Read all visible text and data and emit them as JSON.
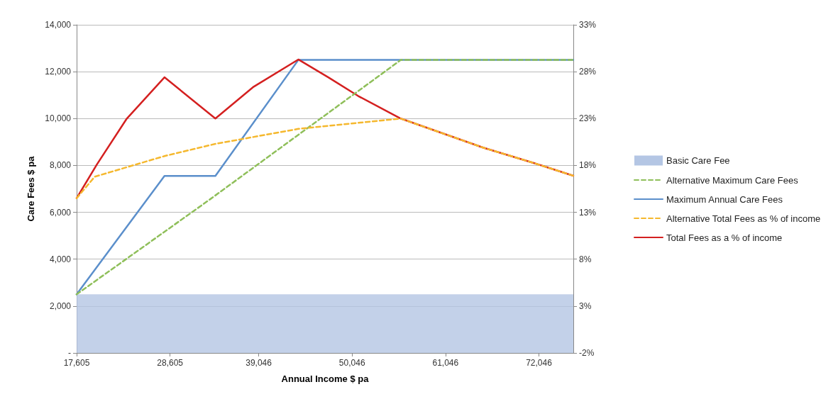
{
  "chart_data": {
    "type": "line",
    "xlabel": "Annual Income $ pa",
    "ylabel": "Care Fees $ pa",
    "xlim": [
      17605,
      76100
    ],
    "xticks": [
      {
        "value": 17605,
        "label": "17,605"
      },
      {
        "value": 28605,
        "label": "28,605"
      },
      {
        "value": 39046,
        "label": "39,046"
      },
      {
        "value": 50046,
        "label": "50,046"
      },
      {
        "value": 61046,
        "label": "61,046"
      },
      {
        "value": 72046,
        "label": "72,046"
      }
    ],
    "ylim": [
      0,
      14000
    ],
    "yticks": [
      {
        "value": 0,
        "label": "-"
      },
      {
        "value": 2000,
        "label": "2,000"
      },
      {
        "value": 4000,
        "label": "4,000"
      },
      {
        "value": 6000,
        "label": "6,000"
      },
      {
        "value": 8000,
        "label": "8,000"
      },
      {
        "value": 10000,
        "label": "10,000"
      },
      {
        "value": 12000,
        "label": "12,000"
      },
      {
        "value": 14000,
        "label": "14,000"
      }
    ],
    "y2lim": [
      -2,
      33
    ],
    "y2ticks": [
      {
        "value": -2,
        "label": "-2%"
      },
      {
        "value": 3,
        "label": "3%"
      },
      {
        "value": 8,
        "label": "8%"
      },
      {
        "value": 13,
        "label": "13%"
      },
      {
        "value": 18,
        "label": "18%"
      },
      {
        "value": 23,
        "label": "23%"
      },
      {
        "value": 28,
        "label": "28%"
      },
      {
        "value": 33,
        "label": "33%"
      }
    ],
    "grid": "y",
    "legend": "right",
    "marker": "none",
    "series": [
      {
        "name": "Basic Care Fee",
        "type": "area",
        "color": "#b4c6e4",
        "x": [
          17605,
          76100
        ],
        "values": [
          2500,
          2500
        ]
      },
      {
        "name": "Alternative Maximum Care Fees",
        "color": "#8fbf5a",
        "line_style": "dashed",
        "x": [
          17605,
          33300,
          55780,
          76100
        ],
        "values": [
          2500,
          6550,
          12500,
          12500
        ]
      },
      {
        "name": "Maximum Annual Care Fees",
        "color": "#5b8fcb",
        "line_style": "solid",
        "x": [
          17605,
          27950,
          33945,
          43713,
          76100
        ],
        "values": [
          2500,
          7550,
          7550,
          12500,
          12500
        ]
      },
      {
        "name": "Alternative Total Fees as % of income",
        "color": "#f5b82e",
        "line_style": "dashed",
        "axis": "y2",
        "x": [
          17605,
          19740,
          23845,
          27950,
          33945,
          43713,
          55780,
          65470,
          71300,
          76100
        ],
        "values": [
          14.5,
          16.8,
          17.9,
          19.0,
          20.3,
          21.9,
          23.0,
          19.9,
          18.3,
          16.9
        ]
      },
      {
        "name": "Total Fees as a % of income",
        "color": "#d42020",
        "line_style": "solid",
        "axis": "y2",
        "x": [
          17605,
          19986,
          23516,
          27950,
          33945,
          38460,
          43713,
          47245,
          50775,
          55780,
          65470,
          71300,
          76100
        ],
        "values": [
          14.5,
          18.1,
          23.0,
          27.4,
          23.0,
          26.4,
          29.3,
          27.4,
          25.4,
          23.0,
          19.9,
          18.3,
          16.9
        ]
      }
    ]
  }
}
